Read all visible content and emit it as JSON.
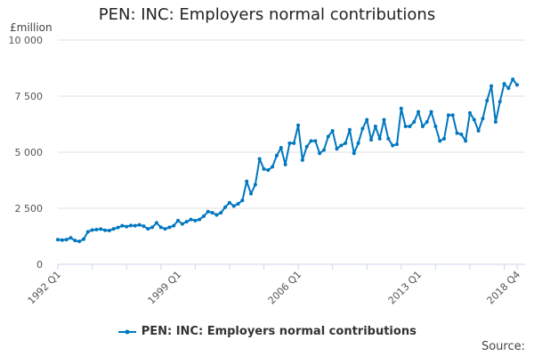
{
  "chart_data": {
    "type": "line",
    "title": "PEN: INC: Employers normal contributions",
    "ylabel": "£million",
    "xlabel": "",
    "ylim": [
      0,
      10000
    ],
    "yticks": [
      "0",
      "2 500",
      "5 000",
      "7 500",
      "10 000"
    ],
    "ytick_values": [
      0,
      2500,
      5000,
      7500,
      10000
    ],
    "xtick_labels": [
      "1992 Q1",
      "1999 Q1",
      "2006 Q1",
      "2013 Q1",
      "2018 Q4"
    ],
    "xtick_indices": [
      0,
      28,
      56,
      84,
      107
    ],
    "x_start": "1992 Q1",
    "x_end": "2018 Q4",
    "frequency": "quarterly",
    "grid": true,
    "legend_position": "bottom",
    "color": "#0077c0",
    "series": [
      {
        "name": "PEN: INC: Employers normal contributions",
        "values": [
          1100,
          1080,
          1100,
          1180,
          1060,
          1020,
          1120,
          1450,
          1530,
          1550,
          1570,
          1520,
          1510,
          1580,
          1640,
          1720,
          1680,
          1730,
          1720,
          1760,
          1700,
          1580,
          1650,
          1850,
          1650,
          1580,
          1650,
          1720,
          1950,
          1800,
          1900,
          2000,
          1950,
          2000,
          2150,
          2350,
          2300,
          2200,
          2300,
          2550,
          2750,
          2600,
          2700,
          2850,
          3700,
          3150,
          3550,
          4700,
          4250,
          4200,
          4350,
          4850,
          5200,
          4450,
          5400,
          5400,
          6200,
          4650,
          5250,
          5500,
          5500,
          4950,
          5100,
          5700,
          5950,
          5150,
          5300,
          5400,
          6000,
          4950,
          5400,
          6050,
          6450,
          5550,
          6150,
          5600,
          6450,
          5600,
          5300,
          5350,
          6950,
          6150,
          6150,
          6350,
          6800,
          6150,
          6350,
          6800,
          6150,
          5500,
          5600,
          6650,
          6650,
          5850,
          5800,
          5500,
          6750,
          6450,
          5950,
          6500,
          7300,
          7950,
          6350,
          7250,
          8050,
          7850,
          8250,
          8000
        ]
      }
    ]
  },
  "source_label": "Source:"
}
